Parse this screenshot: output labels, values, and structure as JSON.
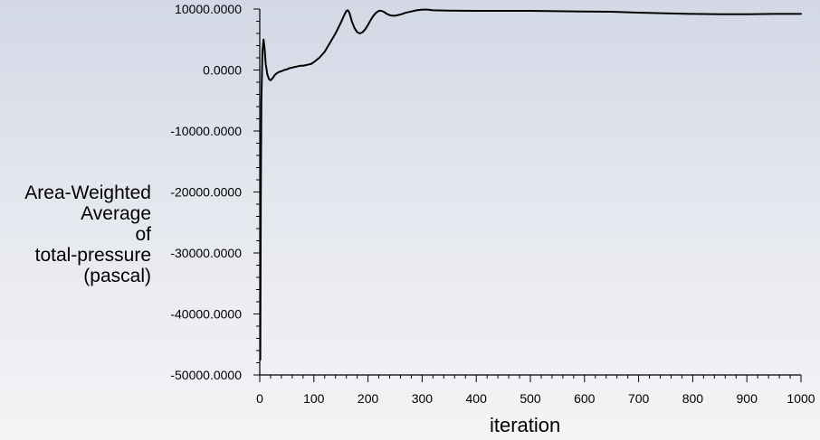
{
  "chart_data": {
    "type": "line",
    "title": "",
    "xlabel": "iteration",
    "ylabel_lines": [
      "Area-Weighted",
      "Average",
      "of",
      "total-pressure",
      "(pascal)"
    ],
    "xlim": [
      0,
      1000
    ],
    "ylim": [
      -50000,
      10000
    ],
    "x_ticks": [
      0,
      100,
      200,
      300,
      400,
      500,
      600,
      700,
      800,
      900,
      1000
    ],
    "x_tick_labels": [
      "0",
      "100",
      "200",
      "300",
      "400",
      "500",
      "600",
      "700",
      "800",
      "900",
      "1000"
    ],
    "y_ticks": [
      -50000,
      -40000,
      -30000,
      -20000,
      -10000,
      0,
      10000
    ],
    "y_tick_labels": [
      "-50000.0000",
      "-40000.0000",
      "-30000.0000",
      "-20000.0000",
      "-10000.0000",
      "0.0000",
      "10000.0000"
    ],
    "grid": false,
    "line_color": "#000000",
    "series": [
      {
        "x": [
          1,
          2,
          3,
          5,
          7,
          9,
          11,
          14,
          17,
          20,
          24,
          28,
          32,
          36,
          40,
          45,
          50,
          55,
          60,
          65,
          70,
          75,
          80,
          85,
          90,
          95,
          100,
          110,
          120,
          130,
          140,
          150,
          155,
          160,
          163,
          166,
          170,
          175,
          180,
          185,
          190,
          195,
          200,
          205,
          210,
          215,
          220,
          225,
          230,
          235,
          240,
          245,
          250,
          255,
          260,
          270,
          280,
          290,
          300,
          310,
          320,
          350,
          400,
          450,
          500,
          550,
          600,
          650,
          700,
          750,
          800,
          850,
          900,
          950,
          1000
        ],
        "values": [
          -47500,
          -20000,
          -5000,
          3000,
          5000,
          3500,
          1000,
          -700,
          -1500,
          -1700,
          -1300,
          -800,
          -500,
          -300,
          -200,
          0,
          100,
          300,
          400,
          500,
          600,
          700,
          700,
          800,
          900,
          1000,
          1300,
          2000,
          3000,
          4500,
          6000,
          7800,
          8800,
          9700,
          9800,
          9300,
          8000,
          6900,
          6200,
          6000,
          6200,
          6700,
          7400,
          8200,
          8900,
          9400,
          9700,
          9700,
          9500,
          9200,
          9000,
          8900,
          8900,
          9000,
          9100,
          9400,
          9600,
          9800,
          9900,
          9900,
          9800,
          9750,
          9700,
          9700,
          9700,
          9650,
          9600,
          9550,
          9400,
          9300,
          9200,
          9150,
          9150,
          9200,
          9200
        ]
      }
    ]
  }
}
